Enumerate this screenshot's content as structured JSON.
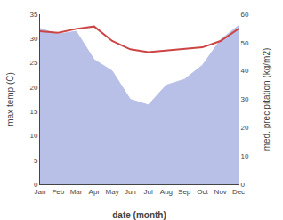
{
  "chart_data": {
    "type": "line",
    "categories": [
      "Jan",
      "Feb",
      "Mar",
      "Apr",
      "May",
      "Jun",
      "Jul",
      "Aug",
      "Sep",
      "Oct",
      "Nov",
      "Dec"
    ],
    "xlabel": "date (month)",
    "ylabel": "max temp (C)",
    "y2label": "med. precipitation (kg/m2)",
    "series": [
      {
        "type": "area",
        "axis": "y2",
        "color": "#b8c0e8",
        "values": [
          55.0,
          53.0,
          54.0,
          44.0,
          40.0,
          30.0,
          28.0,
          35.0,
          37.0,
          42.0,
          51.0,
          56.0
        ]
      },
      {
        "type": "line",
        "color": "#cc4444",
        "values": [
          31.5,
          31.2,
          32.0,
          32.5,
          29.5,
          27.8,
          27.2,
          27.5,
          27.8,
          28.2,
          29.5,
          32.0
        ]
      }
    ],
    "ylim": [
      0,
      35
    ],
    "yticks": [
      0,
      5,
      10,
      15,
      20,
      25,
      30,
      35
    ],
    "y2lim": [
      0,
      60
    ],
    "y2ticks": [
      0,
      10,
      20,
      30,
      40,
      50,
      60
    ],
    "grid": false
  }
}
